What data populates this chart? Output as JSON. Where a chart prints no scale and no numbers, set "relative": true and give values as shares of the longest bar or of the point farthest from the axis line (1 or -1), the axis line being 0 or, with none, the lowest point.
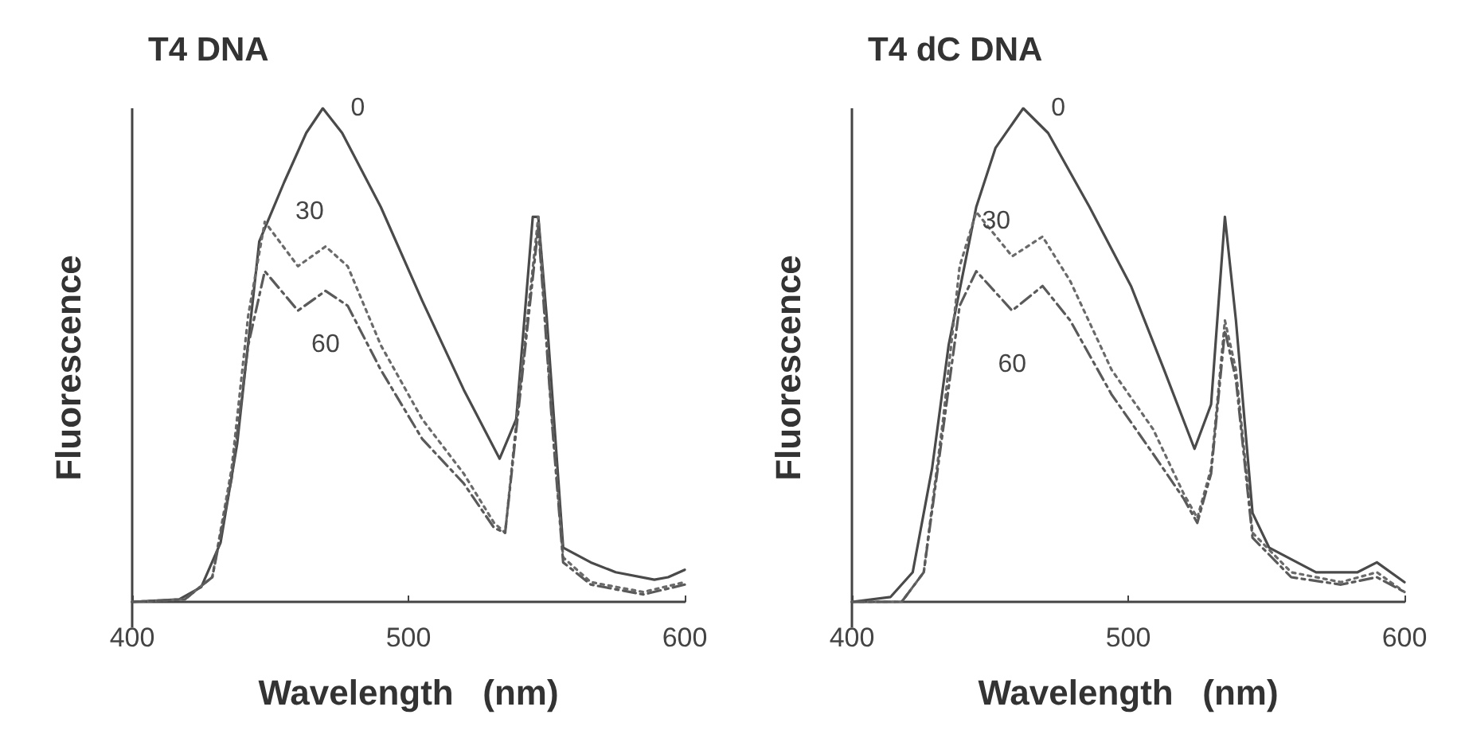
{
  "chart_data": [
    {
      "type": "line",
      "title": "T4 DNA",
      "xlabel": "Wavelength   (nm)",
      "ylabel": "Fluorescence",
      "relative": true,
      "xlim": [
        400,
        600
      ],
      "xticks": [
        400,
        500,
        600
      ],
      "grid": false,
      "marker": "none",
      "series": [
        {
          "name": "0",
          "color": "#4a4a4a",
          "line_style": "solid",
          "x": [
            400,
            417,
            425,
            432,
            438,
            446,
            455,
            463,
            469,
            476,
            490,
            505,
            520,
            533,
            539,
            545,
            547,
            550,
            556,
            566,
            575,
            589,
            594,
            600
          ],
          "values": [
            0,
            0.005,
            0.03,
            0.12,
            0.32,
            0.73,
            0.85,
            0.95,
            1.0,
            0.95,
            0.8,
            0.61,
            0.43,
            0.29,
            0.37,
            0.78,
            0.78,
            0.58,
            0.11,
            0.08,
            0.06,
            0.045,
            0.05,
            0.065
          ]
        },
        {
          "name": "30",
          "color": "#6a6a6a",
          "line_style": "dotted",
          "x": [
            400,
            419,
            429,
            436,
            442,
            448,
            460,
            470,
            478,
            490,
            505,
            520,
            531,
            535,
            541,
            547,
            552,
            556,
            566,
            585,
            600
          ],
          "values": [
            0,
            0.005,
            0.05,
            0.27,
            0.58,
            0.77,
            0.68,
            0.72,
            0.68,
            0.52,
            0.37,
            0.26,
            0.16,
            0.14,
            0.47,
            0.78,
            0.37,
            0.09,
            0.04,
            0.02,
            0.04
          ]
        },
        {
          "name": "60",
          "color": "#5a5a5a",
          "line_style": "dashed",
          "x": [
            400,
            419,
            429,
            436,
            442,
            448,
            460,
            470,
            478,
            490,
            505,
            520,
            531,
            535,
            541,
            547,
            552,
            556,
            566,
            585,
            600
          ],
          "values": [
            0,
            0.005,
            0.05,
            0.25,
            0.52,
            0.67,
            0.59,
            0.63,
            0.6,
            0.47,
            0.33,
            0.24,
            0.15,
            0.14,
            0.45,
            0.76,
            0.36,
            0.08,
            0.035,
            0.015,
            0.035
          ]
        }
      ]
    },
    {
      "type": "line",
      "title": "T4 dC DNA",
      "xlabel": "Wavelength   (nm)",
      "ylabel": "Fluorescence",
      "relative": true,
      "xlim": [
        400,
        600
      ],
      "xticks": [
        400,
        500,
        600
      ],
      "grid": false,
      "marker": "none",
      "series": [
        {
          "name": "0",
          "color": "#4a4a4a",
          "line_style": "solid",
          "x": [
            400,
            414,
            422,
            429,
            435,
            445,
            452,
            462,
            471,
            486,
            501,
            513,
            524,
            530,
            535,
            539,
            545,
            551,
            568,
            583,
            590,
            600
          ],
          "values": [
            0,
            0.01,
            0.06,
            0.27,
            0.52,
            0.8,
            0.92,
            1.0,
            0.95,
            0.8,
            0.64,
            0.47,
            0.31,
            0.4,
            0.78,
            0.57,
            0.18,
            0.11,
            0.06,
            0.06,
            0.08,
            0.04
          ]
        },
        {
          "name": "30",
          "color": "#6a6a6a",
          "line_style": "dotted",
          "x": [
            400,
            418,
            426,
            433,
            439,
            445,
            458,
            469,
            479,
            494,
            509,
            520,
            525,
            530,
            535,
            539,
            545,
            559,
            577,
            590,
            600
          ],
          "values": [
            0,
            0,
            0.06,
            0.37,
            0.68,
            0.79,
            0.7,
            0.74,
            0.65,
            0.47,
            0.35,
            0.22,
            0.17,
            0.27,
            0.57,
            0.47,
            0.14,
            0.06,
            0.04,
            0.06,
            0.02
          ]
        },
        {
          "name": "60",
          "color": "#5a5a5a",
          "line_style": "dashed",
          "x": [
            400,
            418,
            426,
            433,
            439,
            445,
            458,
            469,
            479,
            494,
            509,
            520,
            525,
            530,
            535,
            539,
            545,
            559,
            577,
            590,
            600
          ],
          "values": [
            0,
            0,
            0.06,
            0.35,
            0.6,
            0.67,
            0.59,
            0.64,
            0.57,
            0.42,
            0.3,
            0.21,
            0.16,
            0.26,
            0.55,
            0.45,
            0.13,
            0.05,
            0.035,
            0.05,
            0.02
          ]
        }
      ]
    }
  ]
}
